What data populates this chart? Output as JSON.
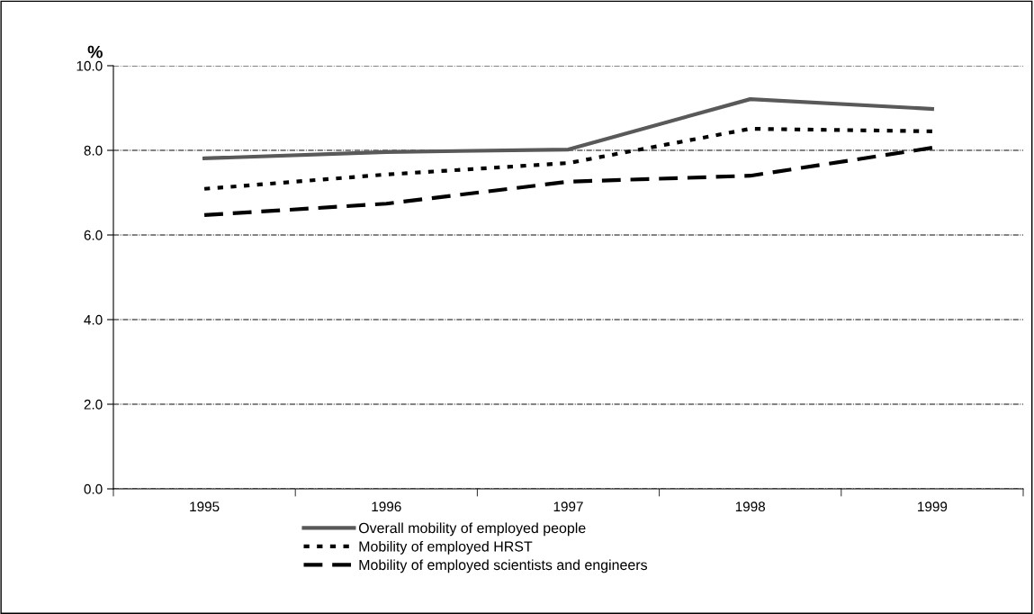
{
  "chart_data": {
    "type": "line",
    "ylabel": "%",
    "categories": [
      "1995",
      "1996",
      "1997",
      "1998",
      "1999"
    ],
    "series": [
      {
        "name": "Overall mobility of employed people",
        "color": "#595959",
        "line_style": "solid",
        "values": [
          7.81,
          7.96,
          8.02,
          9.21,
          8.98
        ]
      },
      {
        "name": "Mobility of employed HRST",
        "color": "#000000",
        "line_style": "dotted",
        "values": [
          7.09,
          7.43,
          7.7,
          8.51,
          8.45
        ]
      },
      {
        "name": "Mobility of employed scientists and engineers",
        "color": "#000000",
        "line_style": "dashed",
        "values": [
          6.47,
          6.74,
          7.26,
          7.4,
          8.06
        ]
      }
    ],
    "ylim": [
      0,
      10
    ],
    "yticks": [
      {
        "value": 0,
        "label": "0.0"
      },
      {
        "value": 2,
        "label": "2.0"
      },
      {
        "value": 4,
        "label": "4.0"
      },
      {
        "value": 6,
        "label": "6.0"
      },
      {
        "value": 8,
        "label": "8.0"
      },
      {
        "value": 10,
        "label": "10.0"
      }
    ],
    "grid": "y",
    "legend": "bottom",
    "marker": "none"
  }
}
